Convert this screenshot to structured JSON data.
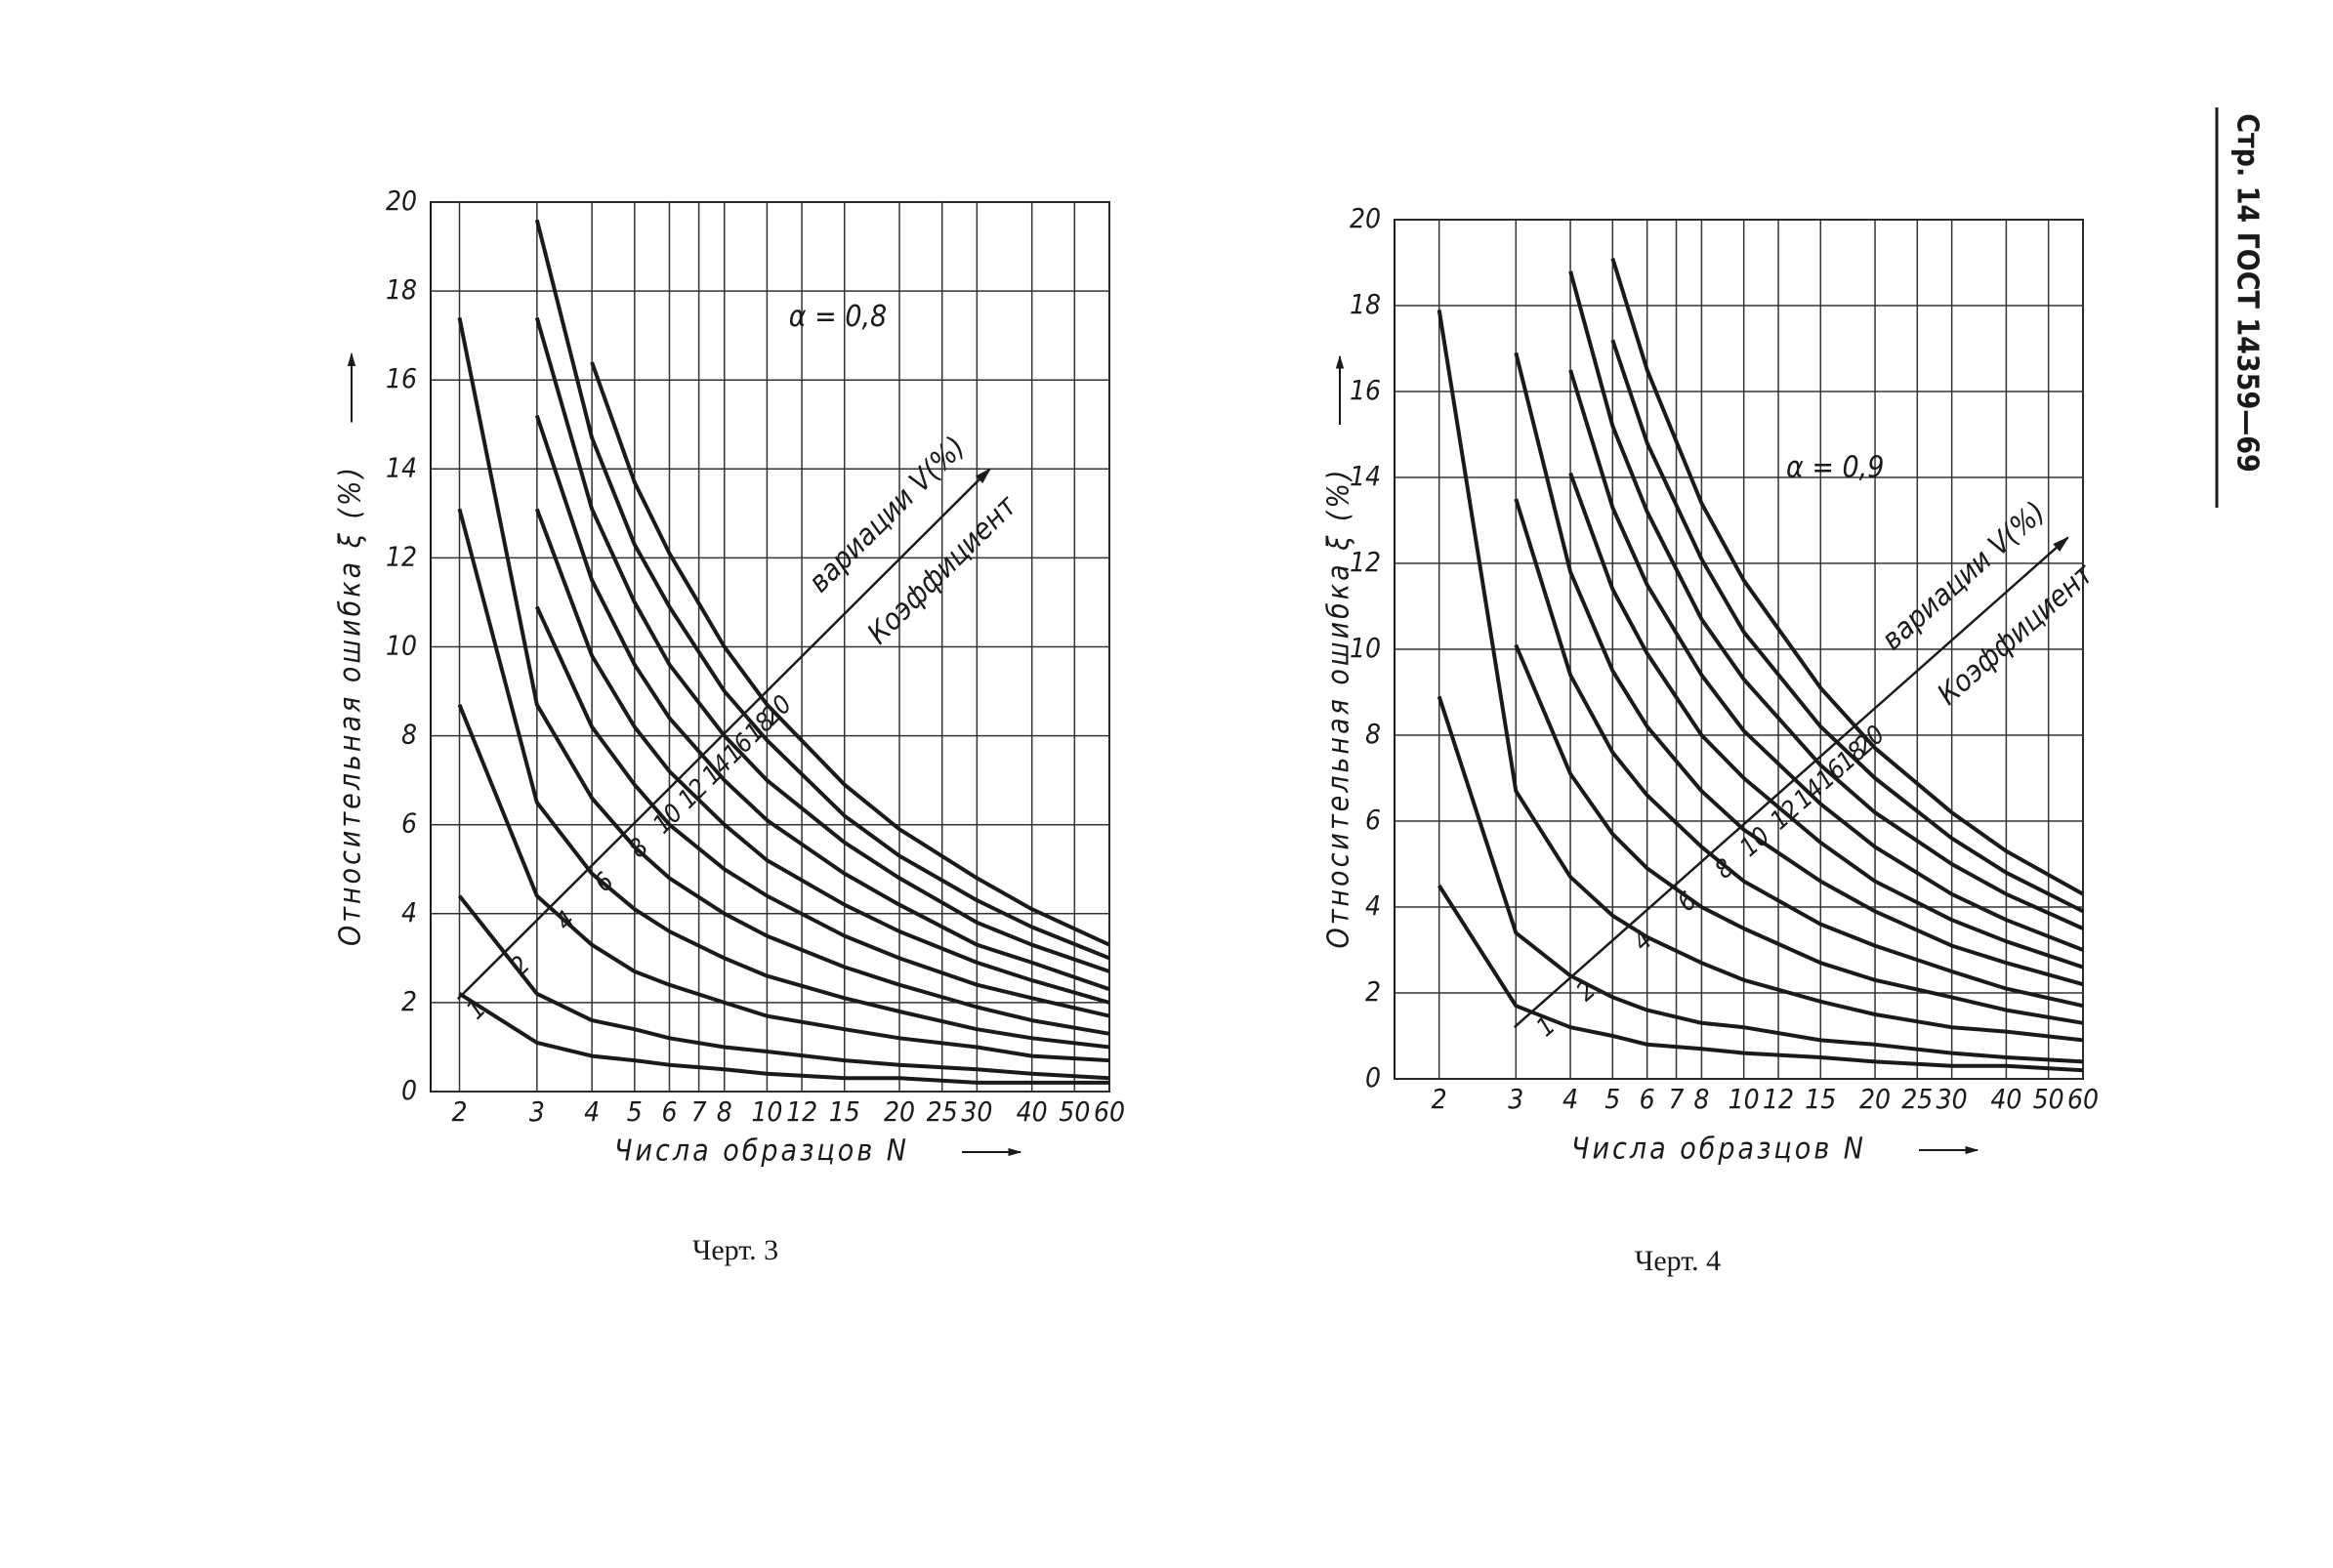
{
  "page": {
    "header": "Стр. 14 ГОСТ 14359—69"
  },
  "chart_data": [
    {
      "type": "line",
      "caption": "Черт. 3",
      "annotation": "α = 0,8",
      "diagonal_label": [
        "Коэффициент",
        "вариации V(%)"
      ],
      "xlabel": "Числа образцов N",
      "ylabel": "Относительная ошибка ξ (%)",
      "x_scale": "log",
      "grid": true,
      "color": "#1a1a1a",
      "xlim": [
        1.72,
        60
      ],
      "xticks": [
        2,
        3,
        4,
        5,
        6,
        7,
        8,
        10,
        12,
        15,
        20,
        25,
        30,
        40,
        50,
        60
      ],
      "ylim": [
        0,
        20
      ],
      "yticks": [
        0,
        2,
        4,
        6,
        8,
        10,
        12,
        14,
        16,
        18,
        20
      ],
      "x": [
        2,
        3,
        4,
        5,
        6,
        8,
        10,
        15,
        20,
        30,
        40,
        60
      ],
      "series": [
        {
          "name": "1",
          "values": [
            2.2,
            1.1,
            0.8,
            0.7,
            0.6,
            0.5,
            0.4,
            0.3,
            0.3,
            0.2,
            0.2,
            0.2
          ]
        },
        {
          "name": "2",
          "values": [
            4.4,
            2.2,
            1.6,
            1.4,
            1.2,
            1.0,
            0.9,
            0.7,
            0.6,
            0.5,
            0.4,
            0.3
          ]
        },
        {
          "name": "4",
          "values": [
            8.7,
            4.4,
            3.3,
            2.7,
            2.4,
            2.0,
            1.7,
            1.4,
            1.2,
            1.0,
            0.8,
            0.7
          ]
        },
        {
          "name": "6",
          "values": [
            13.1,
            6.5,
            4.9,
            4.1,
            3.6,
            3.0,
            2.6,
            2.1,
            1.8,
            1.4,
            1.2,
            1.0
          ]
        },
        {
          "name": "8",
          "values": [
            17.4,
            8.7,
            6.6,
            5.5,
            4.8,
            4.0,
            3.5,
            2.8,
            2.4,
            1.9,
            1.6,
            1.3
          ]
        },
        {
          "name": "10",
          "values": [
            null,
            10.9,
            8.2,
            6.9,
            6.0,
            5.0,
            4.4,
            3.5,
            3.0,
            2.4,
            2.1,
            1.7
          ]
        },
        {
          "name": "12",
          "values": [
            null,
            13.1,
            9.8,
            8.2,
            7.2,
            6.0,
            5.2,
            4.2,
            3.6,
            2.9,
            2.5,
            2.0
          ]
        },
        {
          "name": "14",
          "values": [
            null,
            15.2,
            11.5,
            9.6,
            8.4,
            7.0,
            6.1,
            4.9,
            4.2,
            3.3,
            2.9,
            2.3
          ]
        },
        {
          "name": "16",
          "values": [
            null,
            17.4,
            13.1,
            11.0,
            9.6,
            8.0,
            7.0,
            5.6,
            4.8,
            3.8,
            3.3,
            2.7
          ]
        },
        {
          "name": "18",
          "values": [
            null,
            19.6,
            14.7,
            12.3,
            10.9,
            9.0,
            7.9,
            6.2,
            5.3,
            4.3,
            3.7,
            3.0
          ]
        },
        {
          "name": "20",
          "values": [
            null,
            null,
            16.4,
            13.7,
            12.1,
            10.0,
            8.7,
            6.9,
            5.9,
            4.8,
            4.1,
            3.3
          ]
        }
      ]
    },
    {
      "type": "line",
      "caption": "Черт. 4",
      "annotation": "α = 0,9",
      "diagonal_label": [
        "Коэффициент",
        "вариации V(%)"
      ],
      "xlabel": "Числа образцов N",
      "ylabel": "Относительная ошибка ξ (%)",
      "x_scale": "log",
      "grid": true,
      "color": "#1a1a1a",
      "xlim": [
        1.58,
        60
      ],
      "xticks": [
        2,
        3,
        4,
        5,
        6,
        7,
        8,
        10,
        12,
        15,
        20,
        25,
        30,
        40,
        50,
        60
      ],
      "ylim": [
        0,
        20
      ],
      "yticks": [
        0,
        2,
        4,
        6,
        8,
        10,
        12,
        14,
        16,
        18,
        20
      ],
      "x": [
        2,
        3,
        4,
        5,
        6,
        8,
        10,
        15,
        20,
        30,
        40,
        60
      ],
      "series": [
        {
          "name": "1",
          "values": [
            4.5,
            1.7,
            1.2,
            1.0,
            0.8,
            0.7,
            0.6,
            0.5,
            0.4,
            0.3,
            0.3,
            0.2
          ]
        },
        {
          "name": "2",
          "values": [
            8.9,
            3.4,
            2.4,
            1.9,
            1.6,
            1.3,
            1.2,
            0.9,
            0.8,
            0.6,
            0.5,
            0.4
          ]
        },
        {
          "name": "4",
          "values": [
            17.9,
            6.7,
            4.7,
            3.8,
            3.3,
            2.7,
            2.3,
            1.8,
            1.5,
            1.2,
            1.1,
            0.9
          ]
        },
        {
          "name": "6",
          "values": [
            null,
            10.1,
            7.1,
            5.7,
            4.9,
            4.0,
            3.5,
            2.7,
            2.3,
            1.9,
            1.6,
            1.3
          ]
        },
        {
          "name": "8",
          "values": [
            null,
            13.5,
            9.4,
            7.6,
            6.6,
            5.4,
            4.6,
            3.6,
            3.1,
            2.5,
            2.1,
            1.7
          ]
        },
        {
          "name": "10",
          "values": [
            null,
            16.9,
            11.8,
            9.5,
            8.2,
            6.7,
            5.8,
            4.6,
            3.9,
            3.1,
            2.7,
            2.2
          ]
        },
        {
          "name": "12",
          "values": [
            null,
            null,
            14.1,
            11.4,
            9.9,
            8.0,
            7.0,
            5.5,
            4.6,
            3.7,
            3.2,
            2.6
          ]
        },
        {
          "name": "14",
          "values": [
            null,
            null,
            16.5,
            13.3,
            11.5,
            9.4,
            8.1,
            6.4,
            5.4,
            4.3,
            3.7,
            3.0
          ]
        },
        {
          "name": "16",
          "values": [
            null,
            null,
            18.8,
            15.2,
            13.2,
            10.7,
            9.3,
            7.3,
            6.2,
            5.0,
            4.3,
            3.5
          ]
        },
        {
          "name": "18",
          "values": [
            null,
            null,
            null,
            17.2,
            14.8,
            12.1,
            10.4,
            8.2,
            7.0,
            5.6,
            4.8,
            3.9
          ]
        },
        {
          "name": "20",
          "values": [
            null,
            null,
            null,
            19.1,
            16.5,
            13.4,
            11.6,
            9.1,
            7.7,
            6.2,
            5.3,
            4.3
          ]
        }
      ]
    }
  ]
}
